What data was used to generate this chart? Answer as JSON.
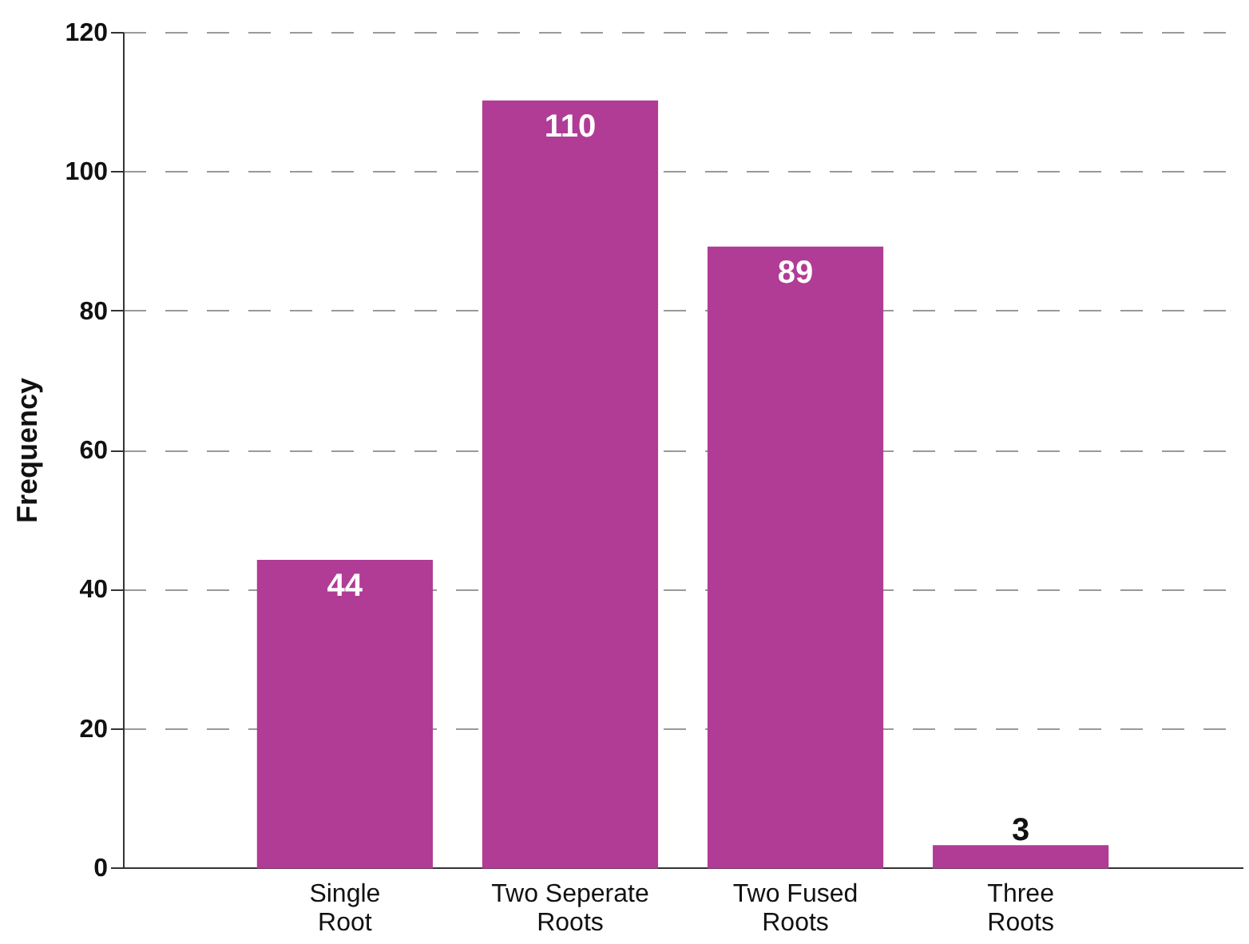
{
  "chart_data": {
    "type": "bar",
    "ylabel": "Frequency",
    "categories": [
      "Single\nRoot",
      "Two Seperate\nRoots",
      "Two Fused\nRoots",
      "Three\nRoots"
    ],
    "values": [
      44,
      110,
      89,
      3
    ],
    "color": "#b03c96",
    "ylim": [
      0,
      120
    ],
    "yticks": [
      0,
      20,
      40,
      60,
      80,
      100,
      120
    ],
    "grid": "y",
    "data_labels": true
  }
}
